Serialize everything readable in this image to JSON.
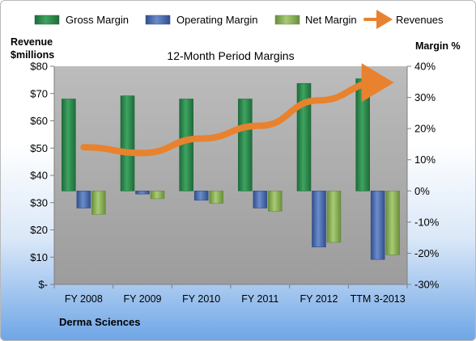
{
  "chart_data": {
    "type": "bar",
    "title": "12-Month Period Margins",
    "company": "Derma Sciences",
    "left_axis_label": [
      "Revenue",
      "$millions"
    ],
    "right_axis_label": "Margin %",
    "categories": [
      "FY 2008",
      "FY 2009",
      "FY 2010",
      "FY 2011",
      "FY 2012",
      "TTM 3-2013"
    ],
    "left_axis": {
      "min": 0,
      "max": 80,
      "step": 10,
      "tick_labels": [
        "$-",
        "$10",
        "$20",
        "$30",
        "$40",
        "$50",
        "$60",
        "$70",
        "$80"
      ]
    },
    "right_axis": {
      "min": -30,
      "max": 40,
      "step": 10,
      "tick_labels": [
        "-30%",
        "-20%",
        "-10%",
        "0%",
        "10%",
        "20%",
        "30%",
        "40%"
      ]
    },
    "series": [
      {
        "name": "Gross Margin",
        "axis": "right",
        "color": "#2e8a4e",
        "values": [
          29.5,
          30.5,
          29.5,
          29.5,
          34.5,
          36.0
        ]
      },
      {
        "name": "Operating Margin",
        "axis": "right",
        "color": "#4f72b8",
        "values": [
          -5.5,
          -1.0,
          -3.0,
          -5.5,
          -18.0,
          -22.0
        ]
      },
      {
        "name": "Net Margin",
        "axis": "right",
        "color": "#8fb55a",
        "values": [
          -7.5,
          -2.5,
          -4.0,
          -6.5,
          -16.5,
          -20.5
        ]
      },
      {
        "name": "Revenues",
        "axis": "left",
        "type": "line",
        "color": "#e8822e",
        "values": [
          50.3,
          48.2,
          53.5,
          58.2,
          67.5,
          74.0
        ]
      }
    ],
    "legend_position": "top",
    "grid": false
  }
}
